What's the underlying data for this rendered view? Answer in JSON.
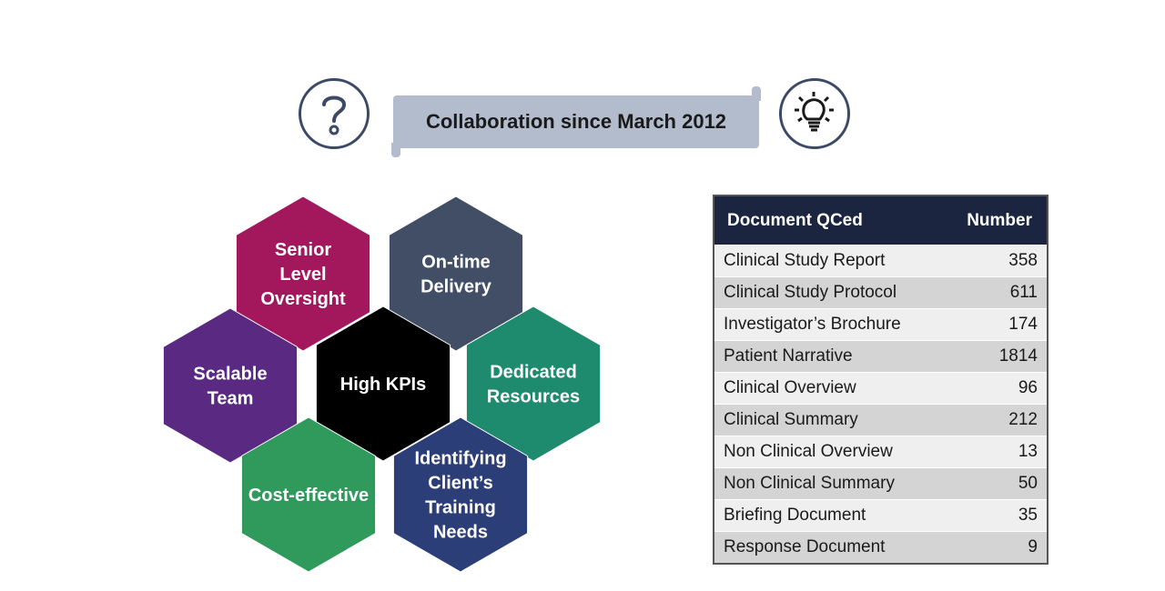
{
  "banner": {
    "title": "Collaboration since March 2012"
  },
  "icons": {
    "left": "question-icon",
    "right": "lightbulb-icon",
    "stroke": "#3c4a67"
  },
  "hexagons": [
    {
      "id": "senior",
      "lines": [
        "Senior",
        "Level",
        "Oversight"
      ],
      "color": "#a3175d"
    },
    {
      "id": "ontime",
      "lines": [
        "On-time",
        "Delivery"
      ],
      "color": "#424e66"
    },
    {
      "id": "scalable",
      "lines": [
        "Scalable",
        "Team"
      ],
      "color": "#5a2a82"
    },
    {
      "id": "center",
      "lines": [
        "High KPIs"
      ],
      "color": "#000000"
    },
    {
      "id": "dedicated",
      "lines": [
        "Dedicated",
        "Resources"
      ],
      "color": "#1e8a6e"
    },
    {
      "id": "cost",
      "lines": [
        "Cost-effective"
      ],
      "color": "#2f9a5c"
    },
    {
      "id": "identifying",
      "lines": [
        "Identifying",
        "Client’s",
        "Training",
        "Needs"
      ],
      "color": "#2c3e78"
    }
  ],
  "table": {
    "headers": [
      "Document QCed",
      "Number"
    ],
    "header_color": "#1b2540",
    "rows": [
      [
        "Clinical Study Report",
        "358"
      ],
      [
        "Clinical Study Protocol",
        "611"
      ],
      [
        "Investigator’s Brochure",
        "174"
      ],
      [
        "Patient Narrative",
        "1814"
      ],
      [
        "Clinical Overview",
        "96"
      ],
      [
        "Clinical Summary",
        "212"
      ],
      [
        "Non Clinical Overview",
        "13"
      ],
      [
        "Non Clinical Summary",
        "50"
      ],
      [
        "Briefing Document",
        "35"
      ],
      [
        "Response Document",
        "9"
      ]
    ]
  }
}
